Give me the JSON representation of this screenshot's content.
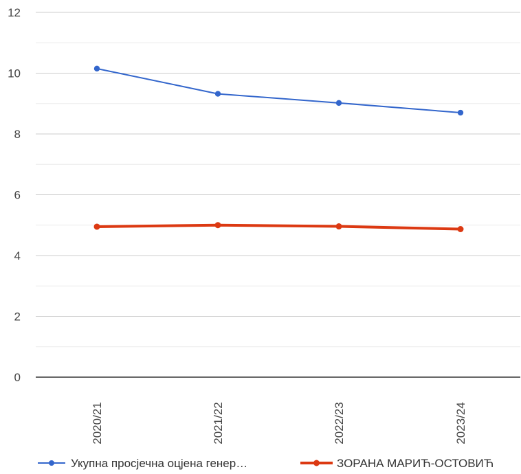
{
  "chart_data": {
    "type": "line",
    "title": "",
    "xlabel": "",
    "ylabel": "",
    "categories": [
      "2020/21",
      "2021/22",
      "2022/23",
      "2023/24"
    ],
    "ylim": [
      0,
      12
    ],
    "yticks": [
      "0",
      "2",
      "4",
      "6",
      "8",
      "10",
      "12"
    ],
    "grid": true,
    "legend_position": "bottom",
    "series": [
      {
        "name": "Укупна просјечна оцјена генер…",
        "color": "#3366cc",
        "values": [
          10.15,
          9.32,
          9.02,
          8.7
        ]
      },
      {
        "name": "ЗОРАНА МАРИЋ-ОСТОВИЋ",
        "color": "#dc3912",
        "values": [
          4.95,
          5.0,
          4.96,
          4.87
        ]
      }
    ]
  }
}
